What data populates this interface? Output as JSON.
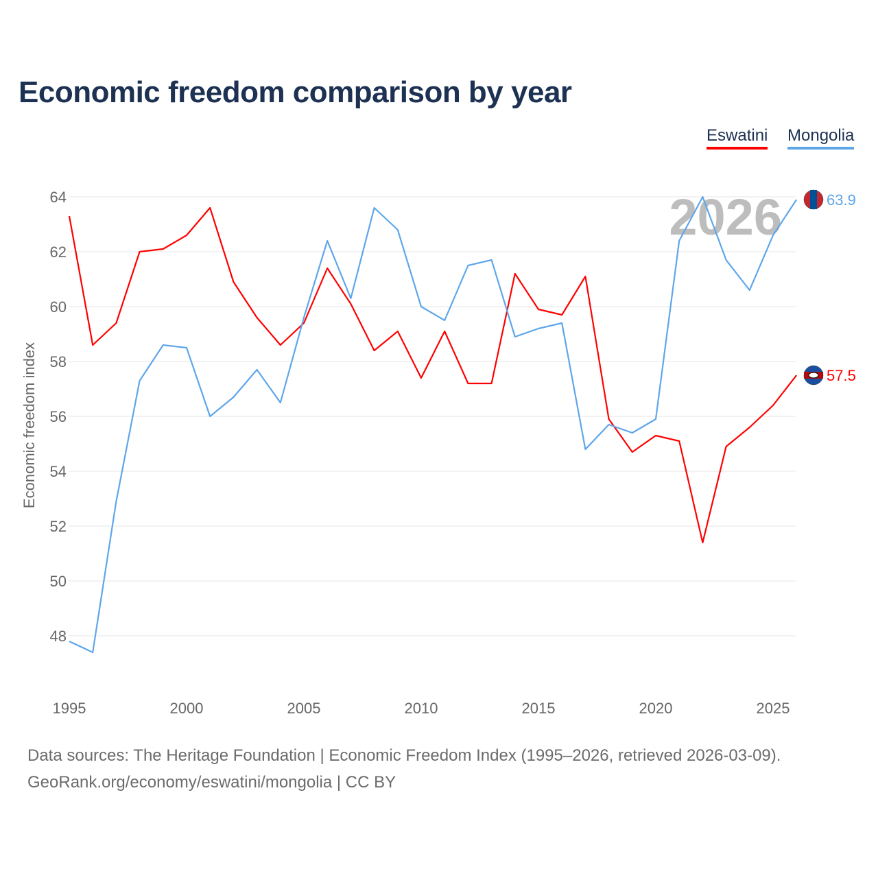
{
  "chart_data": {
    "type": "line",
    "title": "Economic freedom comparison by year",
    "xlabel": "",
    "ylabel": "Economic freedom index",
    "x": [
      1995,
      1996,
      1997,
      1998,
      1999,
      2000,
      2001,
      2002,
      2003,
      2004,
      2005,
      2006,
      2007,
      2008,
      2009,
      2010,
      2011,
      2012,
      2013,
      2014,
      2015,
      2016,
      2017,
      2018,
      2019,
      2020,
      2021,
      2022,
      2023,
      2024,
      2025,
      2026
    ],
    "xlim": [
      1995,
      2026
    ],
    "ylim": [
      46,
      64.5
    ],
    "xticks": [
      "1995",
      "2000",
      "2005",
      "2010",
      "2015",
      "2020",
      "2025"
    ],
    "yticks": [
      "48",
      "50",
      "52",
      "54",
      "56",
      "58",
      "60",
      "62",
      "64"
    ],
    "grid": true,
    "legend_position": "top-right",
    "year_watermark": "2026",
    "series": [
      {
        "name": "Eswatini",
        "color": "#ff0000",
        "end_label": "57.5",
        "values": [
          63.3,
          58.6,
          59.4,
          62.0,
          62.1,
          62.6,
          63.6,
          60.9,
          59.6,
          58.6,
          59.4,
          61.4,
          60.1,
          58.4,
          59.1,
          57.4,
          59.1,
          57.2,
          57.2,
          61.2,
          59.9,
          59.7,
          61.1,
          55.9,
          54.7,
          55.3,
          55.1,
          51.4,
          54.9,
          55.6,
          56.4,
          57.5
        ]
      },
      {
        "name": "Mongolia",
        "color": "#5ea6ea",
        "end_label": "63.9",
        "values": [
          47.8,
          47.4,
          52.9,
          57.3,
          58.6,
          58.5,
          56.0,
          56.7,
          57.7,
          56.5,
          59.6,
          62.4,
          60.3,
          63.6,
          62.8,
          60.0,
          59.5,
          61.5,
          61.7,
          58.9,
          59.2,
          59.4,
          54.8,
          55.7,
          55.4,
          55.9,
          62.4,
          64.0,
          61.7,
          60.6,
          62.6,
          63.9
        ]
      }
    ]
  },
  "footer": {
    "line1": "Data sources: The Heritage Foundation | Economic Freedom Index (1995–2026, retrieved 2026-03-09).",
    "line2": "GeoRank.org/economy/eswatini/mongolia | CC BY"
  }
}
